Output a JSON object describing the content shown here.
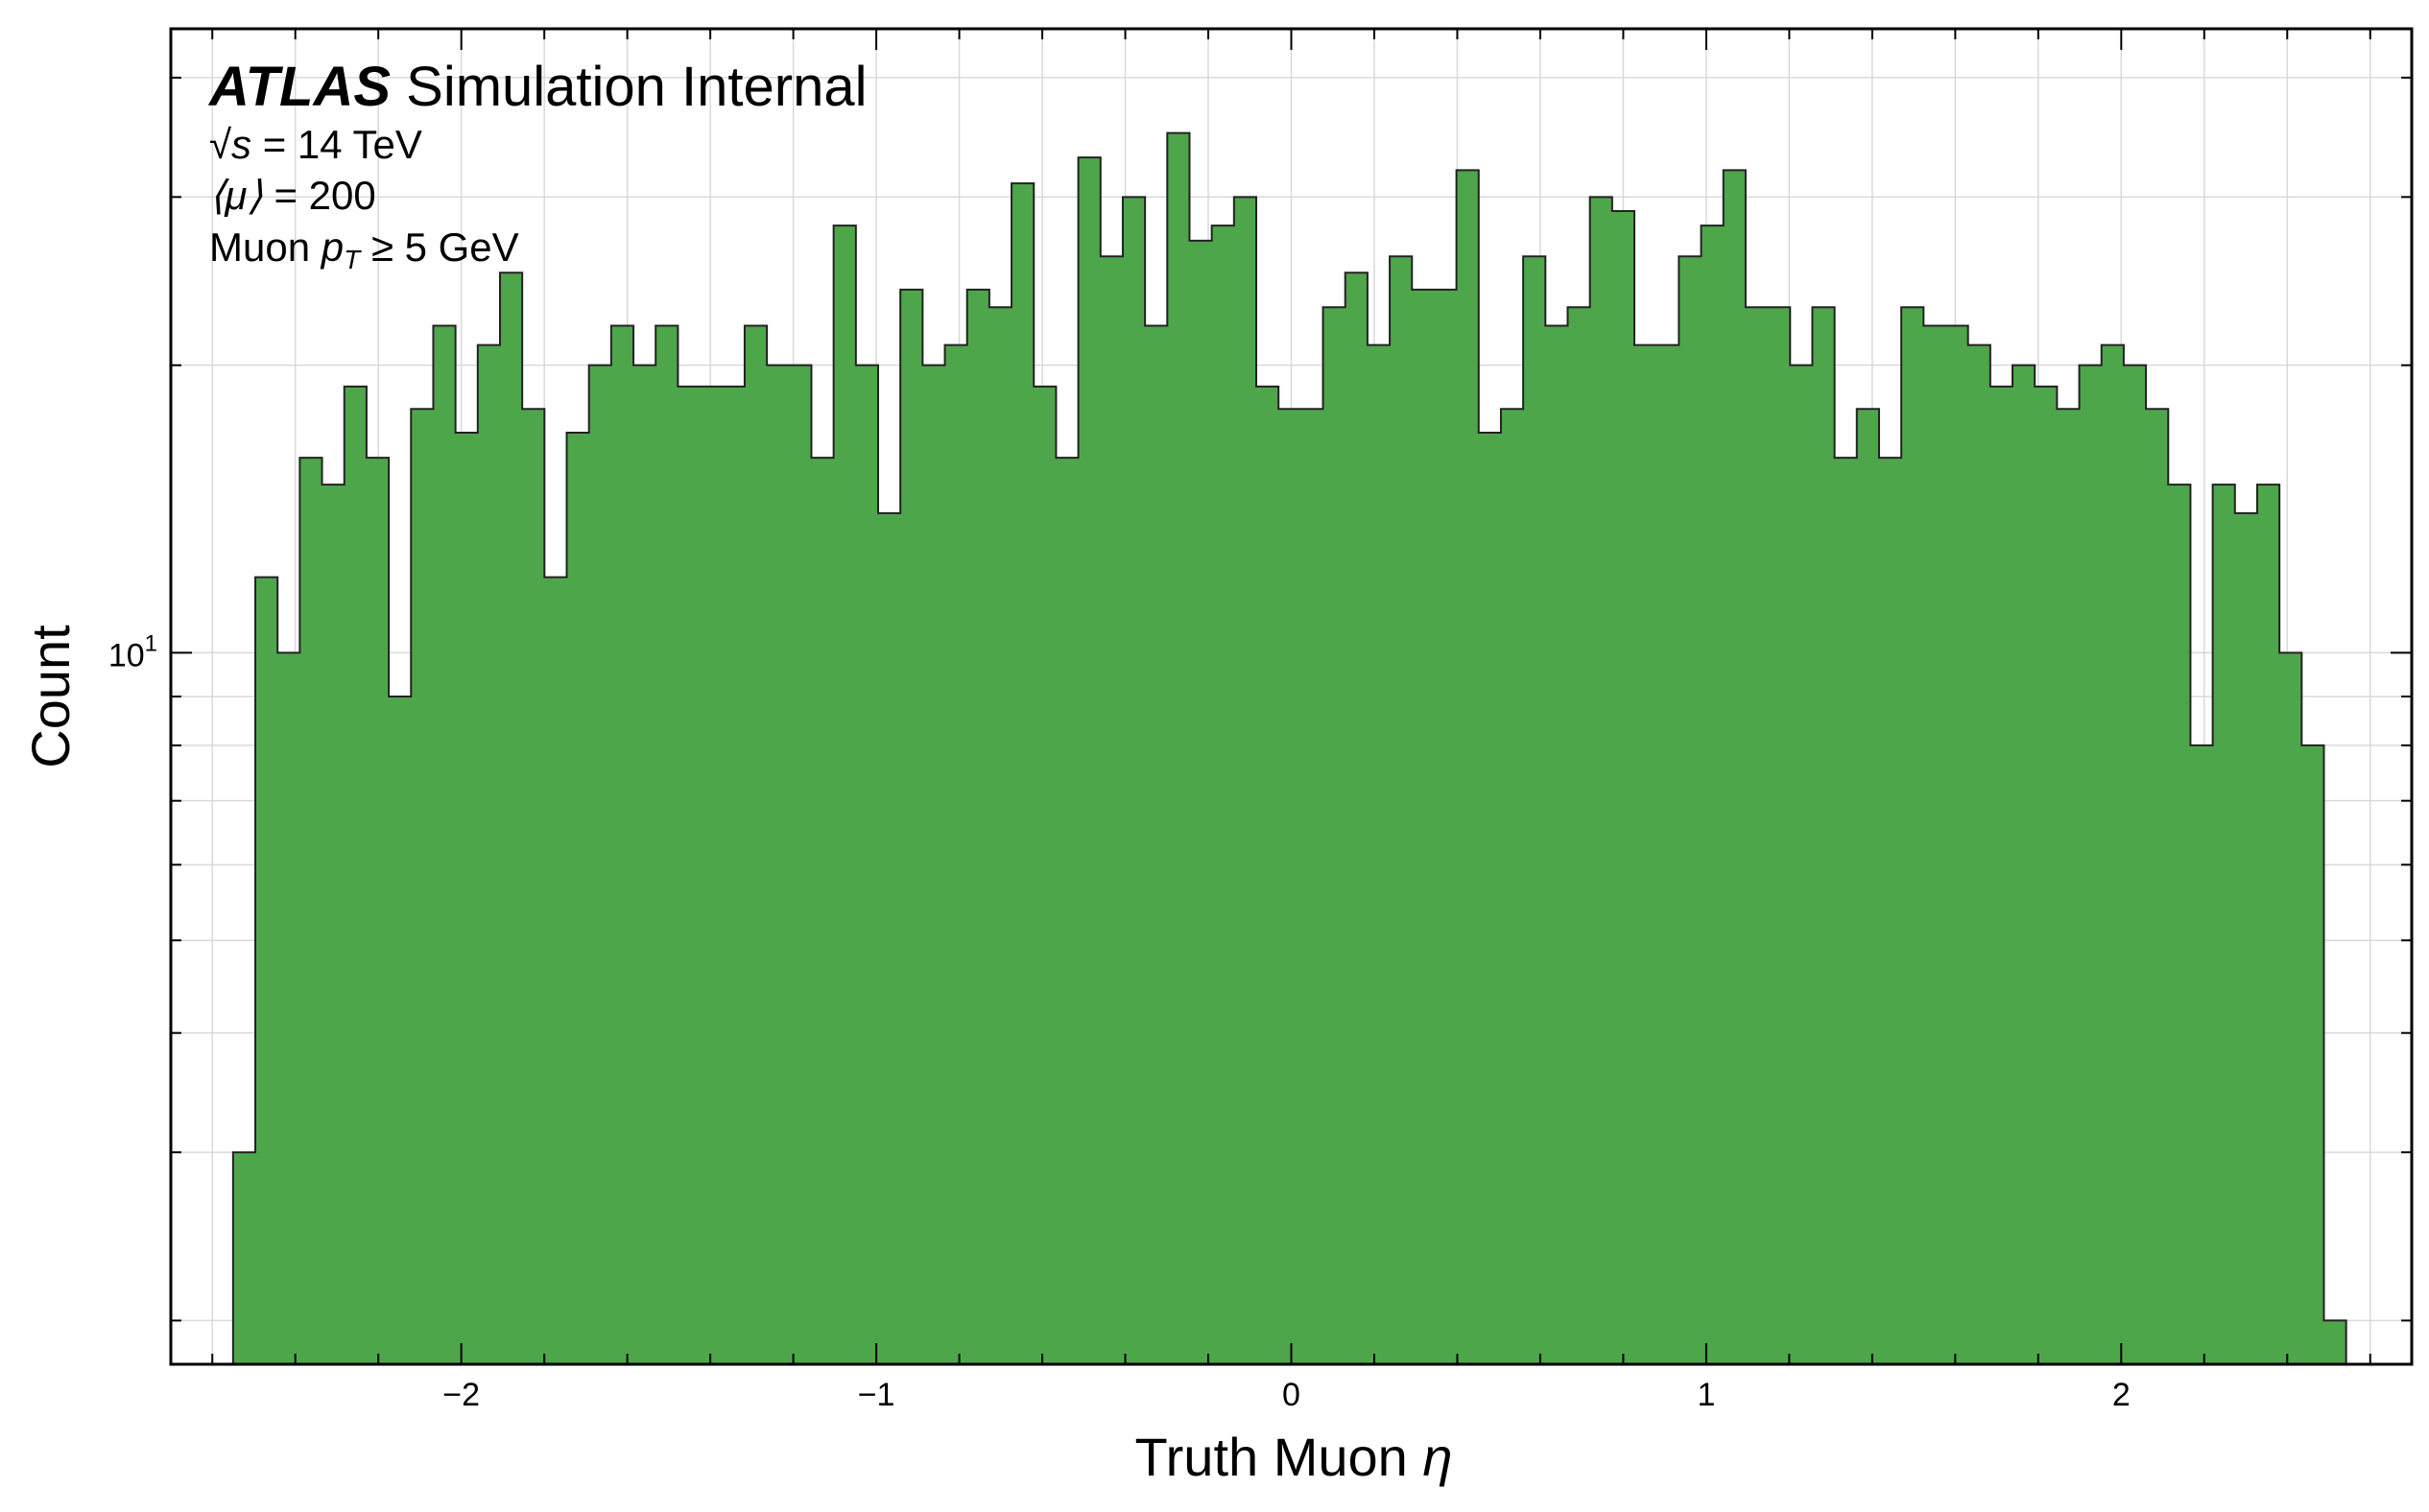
{
  "chart_data": {
    "type": "bar",
    "histogram": true,
    "title": "",
    "xlabel_text": "Truth Muon ",
    "xlabel_symbol": "η",
    "ylabel": "Count",
    "xlim": [
      -2.7,
      2.7
    ],
    "ylim": [
      1.8,
      45
    ],
    "yscale": "log",
    "grid": true,
    "bar_color": "#4ea64a",
    "edge_color": "#222222",
    "x_ticks": [
      {
        "value": -2,
        "label": "−2"
      },
      {
        "value": -1,
        "label": "−1"
      },
      {
        "value": 0,
        "label": "0"
      },
      {
        "value": 1,
        "label": "1"
      },
      {
        "value": 2,
        "label": "2"
      }
    ],
    "y_ticks": [
      {
        "value": 10,
        "base": "10",
        "exp": "1"
      }
    ],
    "bin_start": -2.55,
    "bin_width": 0.0536,
    "values": [
      3,
      12,
      10,
      16,
      15,
      19,
      16,
      9,
      18,
      22,
      17,
      21,
      25,
      18,
      12,
      17,
      20,
      22,
      20,
      22,
      19,
      19,
      19,
      22,
      20,
      20,
      16,
      28,
      20,
      14,
      24,
      20,
      21,
      24,
      23,
      31,
      19,
      16,
      33,
      26,
      30,
      22,
      35,
      27,
      28,
      30,
      19,
      18,
      18,
      23,
      25,
      21,
      26,
      24,
      24,
      32,
      17,
      18,
      26,
      22,
      23,
      30,
      29,
      21,
      21,
      26,
      28,
      32,
      23,
      23,
      20,
      23,
      16,
      18,
      16,
      23,
      22,
      22,
      21,
      19,
      20,
      19,
      18,
      20,
      21,
      20,
      18,
      15,
      8,
      15,
      14,
      15,
      10,
      8,
      2
    ],
    "annotations": {
      "brand": "ATLAS",
      "subtitle": " Simulation Internal",
      "energy_sym": "√s",
      "energy_text": " = 14 TeV",
      "pileup_sym": "⟨μ⟩",
      "pileup_text": " = 200",
      "cut_text": "Muon ",
      "cut_sym": "p",
      "cut_sub": "T",
      "cut_rest": " ≥ 5 GeV"
    }
  }
}
